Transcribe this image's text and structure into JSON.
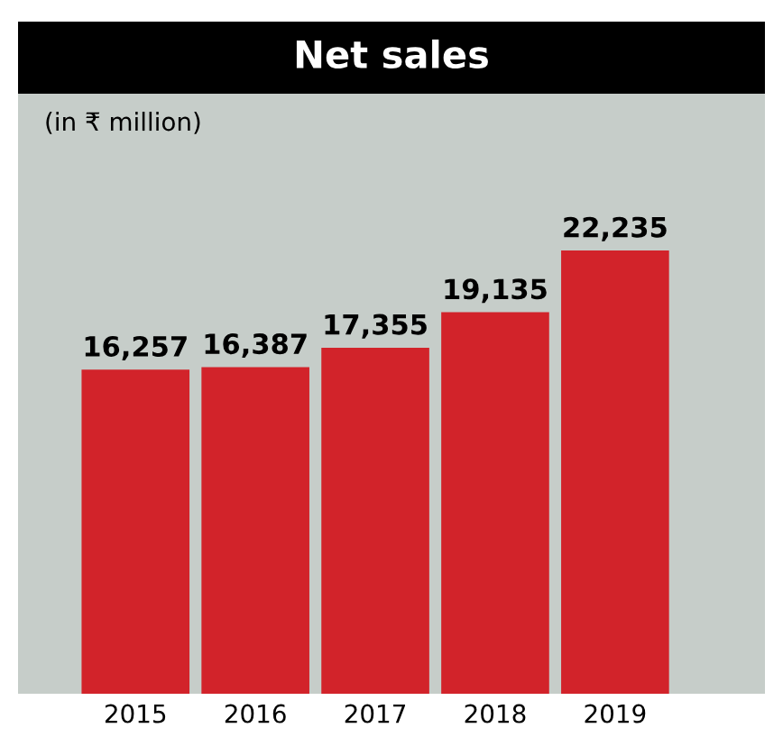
{
  "chart_data": {
    "type": "bar",
    "title": "Net sales",
    "subtitle": "(in ₹ million)",
    "categories": [
      "2015",
      "2016",
      "2017",
      "2018",
      "2019"
    ],
    "values": [
      16257,
      16387,
      17355,
      19135,
      22235
    ],
    "value_labels": [
      "16,257",
      "16,387",
      "17,355",
      "19,135",
      "22,235"
    ],
    "color": "#d2232a",
    "grid": false,
    "legend": false
  }
}
